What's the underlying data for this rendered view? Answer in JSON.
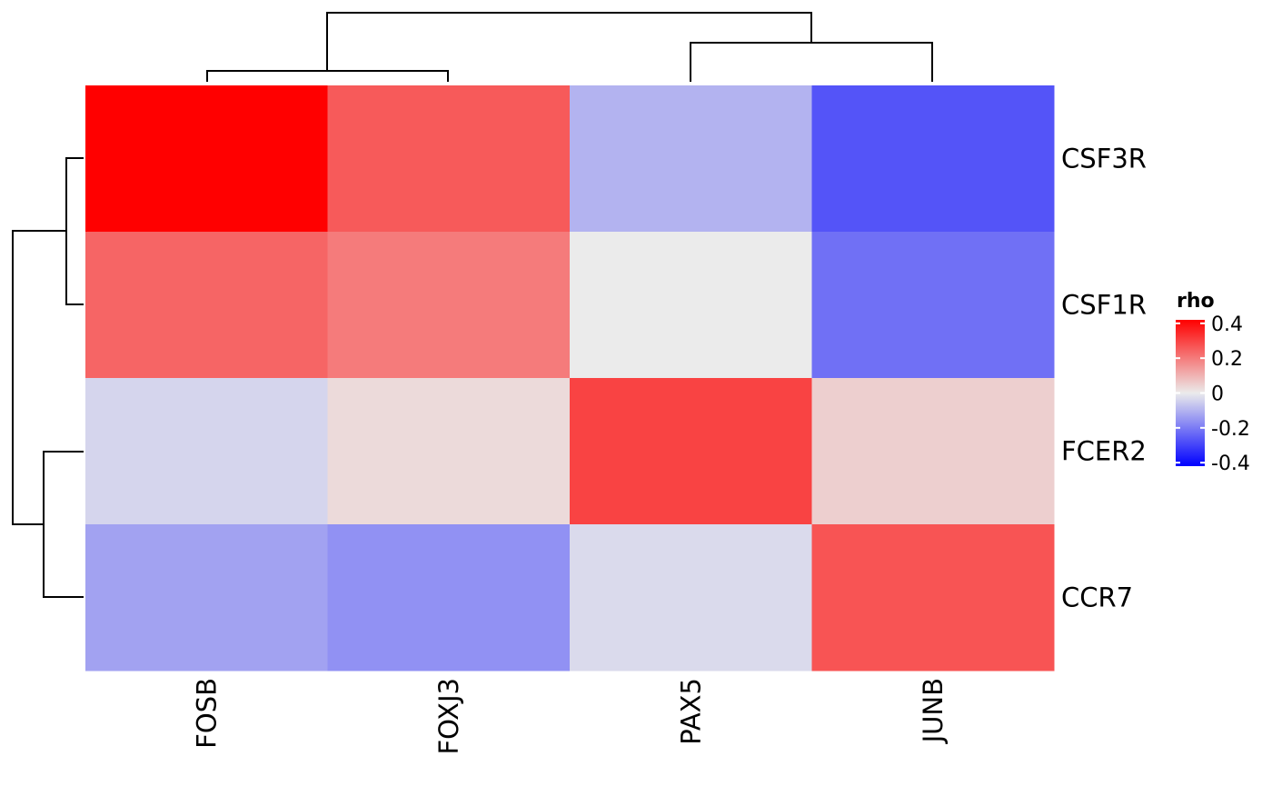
{
  "chart_data": {
    "type": "heatmap",
    "rows": [
      "CSF3R",
      "CSF1R",
      "FCER2",
      "CCR7"
    ],
    "columns": [
      "FOSB",
      "FOXJ3",
      "PAX5",
      "JUNB"
    ],
    "values": [
      [
        0.42,
        0.26,
        -0.1,
        -0.27
      ],
      [
        0.24,
        0.2,
        0.0,
        -0.22
      ],
      [
        -0.04,
        0.03,
        0.3,
        0.05
      ],
      [
        -0.13,
        -0.16,
        -0.03,
        0.27
      ]
    ],
    "legend": {
      "title": "rho",
      "ticks": [
        0.4,
        0.2,
        0,
        -0.2,
        -0.4
      ],
      "tick_labels": [
        "0.4",
        "0.2",
        "0",
        "-0.2",
        "-0.4"
      ],
      "range": [
        -0.42,
        0.42
      ],
      "colors": {
        "low": "#0000ff",
        "mid": "#ebebeb",
        "high": "#ff0000"
      },
      "placement": "right"
    },
    "row_dendrogram": "((CSF3R,CSF1R),(FCER2,CCR7))",
    "column_dendrogram": "((FOSB,FOXJ3),(PAX5,JUNB))"
  }
}
